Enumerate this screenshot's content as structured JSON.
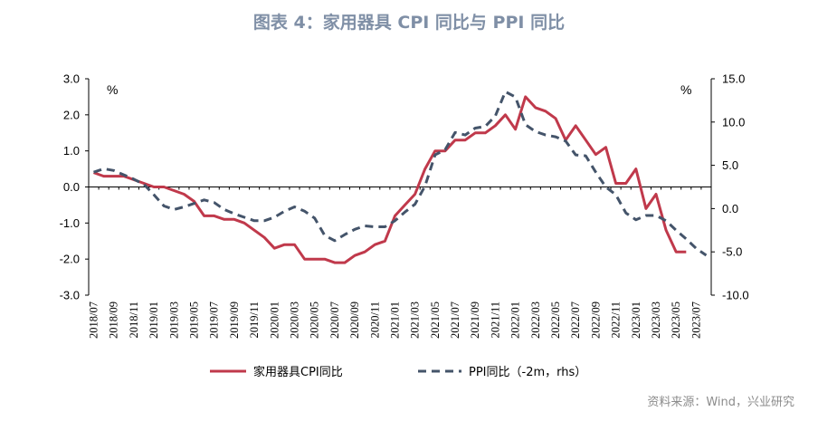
{
  "title": "图表 4：家用器具 CPI 同比与 PPI 同比",
  "source": "资料来源：Wind，兴业研究",
  "chart_data": {
    "type": "line",
    "title": "图表 4：家用器具 CPI 同比与 PPI 同比",
    "x": [
      "2018/07",
      "2018/08",
      "2018/09",
      "2018/10",
      "2018/11",
      "2018/12",
      "2019/01",
      "2019/02",
      "2019/03",
      "2019/04",
      "2019/05",
      "2019/06",
      "2019/07",
      "2019/08",
      "2019/09",
      "2019/10",
      "2019/11",
      "2019/12",
      "2020/01",
      "2020/02",
      "2020/03",
      "2020/04",
      "2020/05",
      "2020/06",
      "2020/07",
      "2020/08",
      "2020/09",
      "2020/10",
      "2020/11",
      "2020/12",
      "2021/01",
      "2021/02",
      "2021/03",
      "2021/04",
      "2021/05",
      "2021/06",
      "2021/07",
      "2021/08",
      "2021/09",
      "2021/10",
      "2021/11",
      "2021/12",
      "2022/01",
      "2022/02",
      "2022/03",
      "2022/04",
      "2022/05",
      "2022/06",
      "2022/07",
      "2022/08",
      "2022/09",
      "2022/10",
      "2022/11",
      "2022/12",
      "2023/01",
      "2023/02",
      "2023/03",
      "2023/04",
      "2023/05",
      "2023/06",
      "2023/07",
      "2023/08"
    ],
    "x_tick_labels": [
      "2018/07",
      "2018/09",
      "2018/11",
      "2019/01",
      "2019/03",
      "2019/05",
      "2019/07",
      "2019/09",
      "2019/11",
      "2020/01",
      "2020/03",
      "2020/05",
      "2020/07",
      "2020/09",
      "2020/11",
      "2021/01",
      "2021/03",
      "2021/05",
      "2021/07",
      "2021/09",
      "2021/11",
      "2022/01",
      "2022/03",
      "2022/05",
      "2022/07",
      "2022/09",
      "2022/11",
      "2023/01",
      "2023/03",
      "2023/05",
      "2023/07"
    ],
    "left_axis": {
      "ylim": [
        -3.0,
        3.0
      ],
      "ticks": [
        "3.0",
        "2.0",
        "1.0",
        "0.0",
        "-1.0",
        "-2.0",
        "-3.0"
      ],
      "unit": "%"
    },
    "right_axis": {
      "ylim": [
        -10.0,
        15.0
      ],
      "ticks": [
        "15.0",
        "10.0",
        "5.0",
        "0.0",
        "-5.0",
        "-10.0"
      ],
      "unit": "%"
    },
    "legend_position": "bottom",
    "series": [
      {
        "name": "家用器具CPI同比",
        "axis": "left",
        "color": "#c0394b",
        "style": "solid",
        "values": [
          0.4,
          0.3,
          0.3,
          0.3,
          0.2,
          0.1,
          0.0,
          0.0,
          -0.1,
          -0.2,
          -0.4,
          -0.8,
          -0.8,
          -0.9,
          -0.9,
          -1.0,
          -1.2,
          -1.4,
          -1.7,
          -1.6,
          -1.6,
          -2.0,
          -2.0,
          -2.0,
          -2.1,
          -2.1,
          -1.9,
          -1.8,
          -1.6,
          -1.5,
          -0.8,
          -0.5,
          -0.2,
          0.5,
          1.0,
          1.0,
          1.3,
          1.3,
          1.5,
          1.5,
          1.7,
          2.0,
          1.6,
          2.5,
          2.2,
          2.1,
          1.9,
          1.3,
          1.7,
          1.3,
          0.9,
          1.1,
          0.1,
          0.1,
          0.5,
          -0.6,
          -0.2,
          -1.2,
          -1.8,
          -1.8,
          null,
          null
        ]
      },
      {
        "name": "PPI同比（-2m，rhs）",
        "axis": "right",
        "color": "#44546a",
        "style": "dashed",
        "values": [
          4.2,
          4.6,
          4.4,
          3.9,
          3.4,
          2.8,
          1.6,
          0.3,
          -0.1,
          0.2,
          0.6,
          1.0,
          0.7,
          -0.1,
          -0.6,
          -1.0,
          -1.4,
          -1.4,
          -1.0,
          -0.3,
          0.2,
          -0.3,
          -1.1,
          -3.1,
          -3.7,
          -3.0,
          -2.4,
          -2.0,
          -2.1,
          -2.1,
          -1.4,
          -0.4,
          0.5,
          2.6,
          6.2,
          6.8,
          8.8,
          8.5,
          9.3,
          9.5,
          10.7,
          13.5,
          12.9,
          9.7,
          8.9,
          8.5,
          8.3,
          7.8,
          6.2,
          6.1,
          4.2,
          2.5,
          1.6,
          -0.5,
          -1.3,
          -0.8,
          -0.8,
          -1.4,
          -2.5,
          -3.5,
          -4.6,
          -5.4
        ]
      }
    ]
  }
}
